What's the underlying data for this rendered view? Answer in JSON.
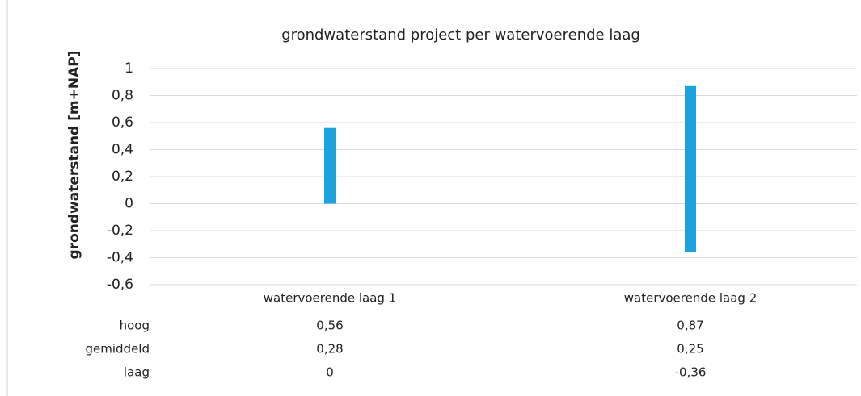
{
  "chart_data": {
    "type": "bar",
    "title": "grondwaterstand project per watervoerende laag",
    "y_label": "grondwaterstand [m+NAP]",
    "categories": [
      "watervoerende laag 1",
      "watervoerende laag 2"
    ],
    "series": [
      {
        "name": "hoog",
        "values": [
          0.56,
          0.87
        ],
        "value_labels": [
          "0,56",
          "0,87"
        ]
      },
      {
        "name": "gemiddeld",
        "values": [
          0.28,
          0.25
        ],
        "value_labels": [
          "0,28",
          "0,25"
        ]
      },
      {
        "name": "laag",
        "values": [
          0,
          -0.36
        ],
        "value_labels": [
          "0",
          "-0,36"
        ]
      }
    ],
    "color": "#1ba3e0",
    "ylim": [
      -0.6,
      1
    ],
    "yticks": [
      {
        "value": -0.6,
        "label": "-0,6"
      },
      {
        "value": -0.4,
        "label": "-0,4"
      },
      {
        "value": -0.2,
        "label": "-0,2"
      },
      0,
      {
        "value": 0.2,
        "label": "0,2"
      },
      {
        "value": 0.4,
        "label": "0,4"
      },
      {
        "value": 0.6,
        "label": "0,6"
      },
      {
        "value": 0.8,
        "label": "0,8"
      },
      1
    ],
    "grid": true
  }
}
